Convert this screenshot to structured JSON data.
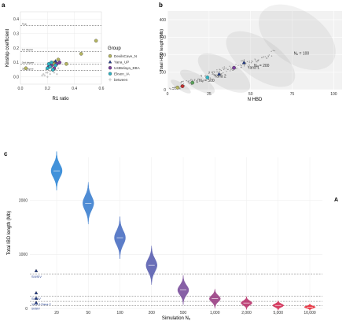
{
  "panel_labels": {
    "a": "a",
    "b": "b",
    "c": "c",
    "side": "A"
  },
  "chart_data": [
    {
      "panel": "a",
      "type": "scatter",
      "xlabel": "R1 ratio",
      "ylabel": "Kinship coefficient",
      "xlim": [
        0,
        0.6
      ],
      "ylim": [
        -0.05,
        0.45
      ],
      "xticks": [
        "0.0",
        "0.2",
        "0.4",
        "0.6"
      ],
      "yticks": [
        "0.0",
        "0.1",
        "0.2",
        "0.3",
        "0.4"
      ],
      "hlines": [
        {
          "label": "Twin",
          "y": 0.354
        },
        {
          "label": "1st degree",
          "y": 0.177
        },
        {
          "label": "2nd degree",
          "y": 0.088
        },
        {
          "label": "3rd degree",
          "y": 0.044
        }
      ],
      "legend": {
        "title": "Group",
        "position": "right",
        "entries": [
          {
            "name": "DevilsCave_N",
            "color": "#b5b560",
            "shape": "circle"
          },
          {
            "name": "Yana_UP",
            "color": "#1f3a8a",
            "shape": "triangle"
          },
          {
            "name": "UstBelaya_EBA",
            "color": "#7b3f9e",
            "shape": "circle"
          },
          {
            "name": "Ekven_IA",
            "color": "#2fb3c4",
            "shape": "circle"
          },
          {
            "name": "between",
            "color": "#bbbbbb",
            "shape": "cross"
          }
        ]
      },
      "series": [
        {
          "name": "between",
          "points": [
            [
              0.18,
              0.01
            ],
            [
              0.2,
              0.03
            ],
            [
              0.22,
              0.02
            ],
            [
              0.19,
              0.05
            ],
            [
              0.24,
              0.04
            ],
            [
              0.21,
              0.06
            ],
            [
              0.17,
              0.02
            ],
            [
              0.23,
              0.07
            ],
            [
              0.25,
              0.03
            ],
            [
              0.26,
              0.05
            ],
            [
              0.2,
              0.0
            ],
            [
              0.22,
              0.04
            ],
            [
              0.28,
              0.06
            ],
            [
              0.19,
              0.03
            ],
            [
              0.24,
              0.08
            ],
            [
              0.16,
              0.01
            ],
            [
              0.27,
              0.02
            ]
          ]
        },
        {
          "name": "DevilsCave_N",
          "points": [
            [
              0.22,
              0.08
            ],
            [
              0.25,
              0.1
            ],
            [
              0.28,
              0.12
            ],
            [
              0.34,
              0.09
            ],
            [
              0.45,
              0.16
            ],
            [
              0.56,
              0.25
            ],
            [
              0.04,
              0.06
            ],
            [
              0.24,
              0.09
            ]
          ]
        },
        {
          "name": "Yana_UP",
          "points": [
            [
              0.26,
              0.11
            ]
          ]
        },
        {
          "name": "UstBelaya_EBA",
          "points": [
            [
              0.21,
              0.07
            ],
            [
              0.23,
              0.08
            ],
            [
              0.25,
              0.06
            ],
            [
              0.27,
              0.09
            ],
            [
              0.29,
              0.1
            ]
          ]
        },
        {
          "name": "Ekven_IA",
          "points": [
            [
              0.2,
              0.06
            ],
            [
              0.22,
              0.07
            ],
            [
              0.24,
              0.05
            ],
            [
              0.26,
              0.08
            ],
            [
              0.21,
              0.09
            ],
            [
              0.23,
              0.1
            ]
          ]
        }
      ]
    },
    {
      "panel": "b",
      "type": "scatter",
      "xlabel": "N HBD",
      "ylabel": "Total HBD length (Mb)",
      "xlim": [
        0,
        105
      ],
      "ylim": [
        0,
        450
      ],
      "xticks": [
        "0",
        "25",
        "50",
        "75",
        "100"
      ],
      "yticks": [
        "0",
        "100",
        "200",
        "300",
        "400"
      ],
      "annotations": [
        {
          "text": "Yana 1",
          "x": 48,
          "y": 120
        },
        {
          "text": "Yana 2",
          "x": 28,
          "y": 70
        },
        {
          "text": "Nₑ = 100",
          "x": 76,
          "y": 200
        },
        {
          "text": "Nₑ = 200",
          "x": 52,
          "y": 130
        },
        {
          "text": "Nₑ = 500",
          "x": 19,
          "y": 44
        }
      ],
      "points_highlight": [
        {
          "x": 46,
          "y": 155,
          "color": "#1f3a8a",
          "shape": "triangle"
        },
        {
          "x": 31,
          "y": 90,
          "color": "#1f3a8a",
          "shape": "triangle"
        },
        {
          "x": 40,
          "y": 125,
          "color": "#7b3f9e",
          "shape": "circle"
        },
        {
          "x": 24,
          "y": 70,
          "color": "#2fb3c4",
          "shape": "circle"
        },
        {
          "x": 9,
          "y": 20,
          "color": "#c03030",
          "shape": "circle"
        },
        {
          "x": 6,
          "y": 12,
          "color": "#b5b560",
          "shape": "circle"
        },
        {
          "x": 15,
          "y": 40,
          "color": "#5aa05a",
          "shape": "circle"
        }
      ]
    },
    {
      "panel": "c",
      "type": "violin",
      "xlabel": "Simulation Nₑ",
      "ylabel": "Total IBD length (Mb)",
      "ylim": [
        0,
        2800
      ],
      "yticks": [
        "0",
        "1000",
        "2000"
      ],
      "categories": [
        "20",
        "50",
        "100",
        "200",
        "500",
        "1,000",
        "2,000",
        "5,000",
        "10,000"
      ],
      "medians": [
        2550,
        1950,
        1310,
        800,
        340,
        180,
        100,
        55,
        25
      ],
      "spreads": [
        120,
        130,
        130,
        120,
        90,
        60,
        40,
        30,
        20
      ],
      "colors": [
        "#2e86d6",
        "#3c7fcf",
        "#4a6fc2",
        "#5a5fb0",
        "#7a4f9c",
        "#9a3f84",
        "#b8336c",
        "#d22a52",
        "#e52a38"
      ],
      "reference_lines": [
        {
          "label": "SIII/SIV",
          "y": 640
        },
        {
          "label": "SII/SIV",
          "y": 230
        },
        {
          "label": "Yana 1/Yana 2",
          "y": 130
        },
        {
          "label": "SI/SIV",
          "y": 50
        }
      ]
    }
  ]
}
